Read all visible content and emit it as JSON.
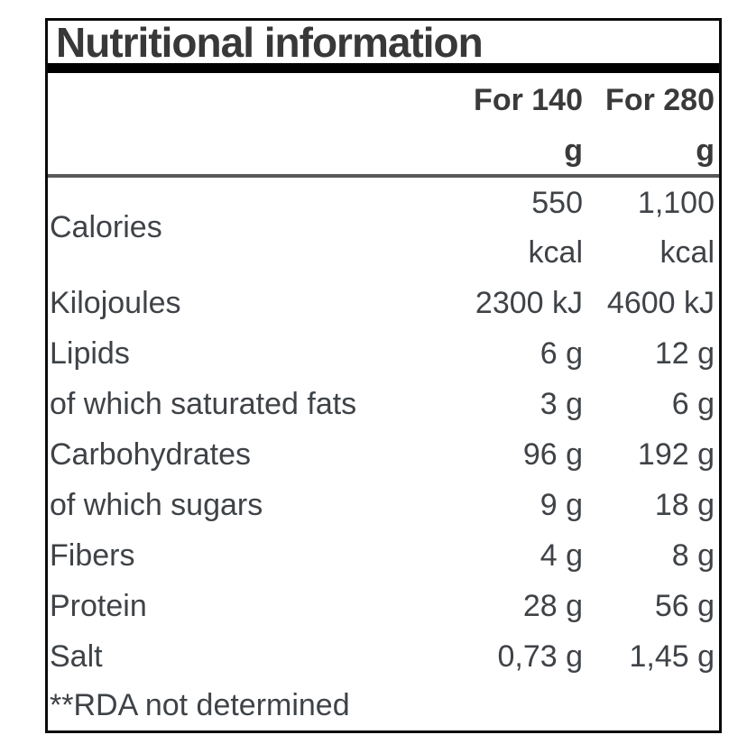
{
  "header": {
    "title": "Nutritional information",
    "columns": [
      {
        "label": "For 140",
        "unit": "g"
      },
      {
        "label": "For 280",
        "unit": "g"
      }
    ]
  },
  "rows": [
    {
      "label": "Calories",
      "values": [
        "550 kcal",
        "1,100 kcal"
      ],
      "stacked": true
    },
    {
      "label": "Kilojoules",
      "values": [
        "2300 kJ",
        "4600 kJ"
      ]
    },
    {
      "label": "Lipids",
      "values": [
        "6 g",
        "12 g"
      ]
    },
    {
      "label": "of which saturated fats",
      "values": [
        "3 g",
        "6 g"
      ]
    },
    {
      "label": "Carbohydrates",
      "values": [
        "96 g",
        "192 g"
      ]
    },
    {
      "label": "of which sugars",
      "values": [
        "9 g",
        "18 g"
      ]
    },
    {
      "label": "Fibers",
      "values": [
        "4 g",
        "8 g"
      ]
    },
    {
      "label": "Protein",
      "values": [
        "28 g",
        "56 g"
      ]
    },
    {
      "label": "Salt",
      "values": [
        "0,73 g",
        "1,45 g"
      ]
    }
  ],
  "footnote": "**RDA not determined",
  "colors": {
    "border": "#0a0a0a",
    "title_text": "#383838",
    "header_text": "#3a3a3a",
    "body_text": "#3f4347",
    "title_rule": "#000000",
    "header_rule": "#58595b"
  }
}
